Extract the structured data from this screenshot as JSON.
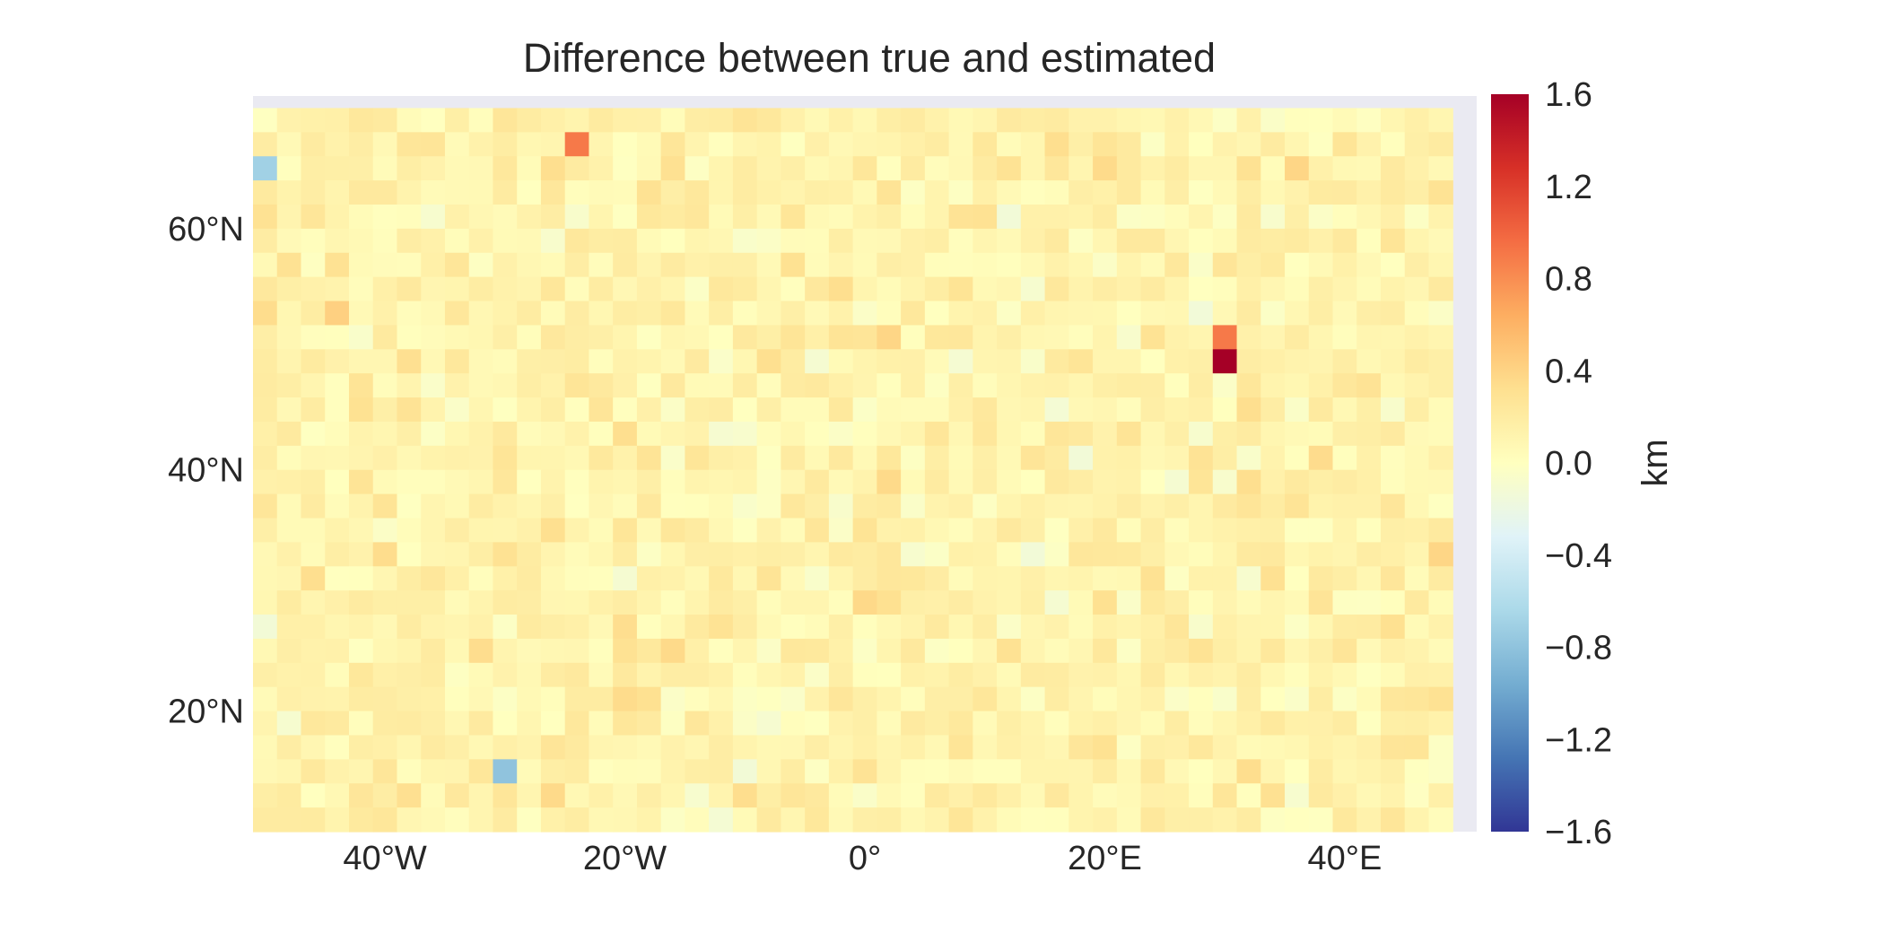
{
  "chart_data": {
    "type": "heatmap",
    "title": "Difference between true and estimated",
    "xlabel": "",
    "ylabel": "",
    "x_ticks": [
      {
        "value": -40,
        "label": "40°W"
      },
      {
        "value": -20,
        "label": "20°W"
      },
      {
        "value": 0,
        "label": "0°"
      },
      {
        "value": 20,
        "label": "20°E"
      },
      {
        "value": 40,
        "label": "40°E"
      }
    ],
    "y_ticks": [
      {
        "value": 60,
        "label": "60°N"
      },
      {
        "value": 40,
        "label": "40°N"
      },
      {
        "value": 20,
        "label": "20°N"
      }
    ],
    "xlim": [
      -51,
      51
    ],
    "ylim": [
      10,
      71
    ],
    "grid_extent": {
      "lon": [
        -51,
        49
      ],
      "lat": [
        10,
        70
      ]
    },
    "grid_shape": {
      "cols": 50,
      "rows": 30
    },
    "colorbar": {
      "label": "km",
      "min": -1.6,
      "max": 1.6,
      "colormap": "RdYlBu_r",
      "ticks": [
        {
          "value": 1.6,
          "label": "1.6"
        },
        {
          "value": 1.2,
          "label": "1.2"
        },
        {
          "value": 0.8,
          "label": "0.8"
        },
        {
          "value": 0.4,
          "label": "0.4"
        },
        {
          "value": 0.0,
          "label": "0.0"
        },
        {
          "value": -0.4,
          "label": "−0.4"
        },
        {
          "value": -0.8,
          "label": "−0.8"
        },
        {
          "value": -1.2,
          "label": "−1.2"
        },
        {
          "value": -1.6,
          "label": "−1.6"
        }
      ]
    },
    "legend": "none",
    "grid": false,
    "colors": {
      "axes_background": "#eaeaf2",
      "text": "#262626"
    },
    "notable_cells": [
      {
        "lon": 30,
        "lat": 48.5,
        "value": 1.6
      },
      {
        "lon": 30,
        "lat": 50.5,
        "value": 0.9
      },
      {
        "lon": -25,
        "lat": 67.5,
        "value": 0.9
      },
      {
        "lon": -30,
        "lat": 14.5,
        "value": -0.8
      },
      {
        "lon": -50,
        "lat": 64.5,
        "value": -0.7
      }
    ]
  }
}
